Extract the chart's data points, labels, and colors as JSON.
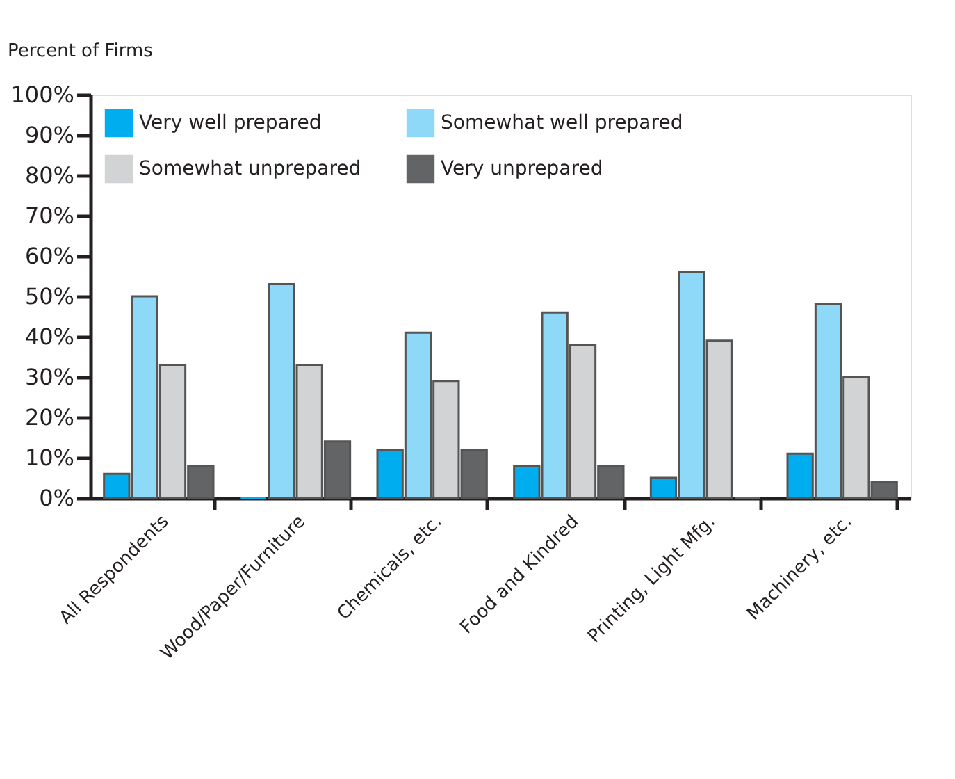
{
  "chart_data": {
    "type": "bar",
    "ylabel": "Percent of Firms",
    "categories": [
      "All Respondents",
      "Wood/Paper/Furniture",
      "Chemicals, etc.",
      "Food and Kindred",
      "Printing, Light Mfg.",
      "Machinery, etc."
    ],
    "series": [
      {
        "name": "Very well prepared",
        "color": "#00aeef",
        "values": [
          6,
          0,
          12,
          8,
          5,
          11
        ]
      },
      {
        "name": "Somewhat well prepared",
        "color": "#8ed8f8",
        "values": [
          50,
          53,
          41,
          46,
          56,
          48
        ]
      },
      {
        "name": "Somewhat unprepared",
        "color": "#d1d3d4",
        "values": [
          33,
          33,
          29,
          38,
          39,
          30
        ]
      },
      {
        "name": "Very unprepared",
        "color": "#636466",
        "values": [
          8,
          14,
          12,
          8,
          0,
          4
        ]
      }
    ],
    "ylim": [
      0,
      100
    ],
    "yticks": [
      {
        "value": 0,
        "label": "0%"
      },
      {
        "value": 10,
        "label": "10%"
      },
      {
        "value": 20,
        "label": "20%"
      },
      {
        "value": 30,
        "label": "30%"
      },
      {
        "value": 40,
        "label": "40%"
      },
      {
        "value": 50,
        "label": "50%"
      },
      {
        "value": 60,
        "label": "60%"
      },
      {
        "value": 70,
        "label": "70%"
      },
      {
        "value": 80,
        "label": "80%"
      },
      {
        "value": 90,
        "label": "90%"
      },
      {
        "value": 100,
        "label": "100%"
      }
    ],
    "grid": false,
    "legend": "top left"
  }
}
